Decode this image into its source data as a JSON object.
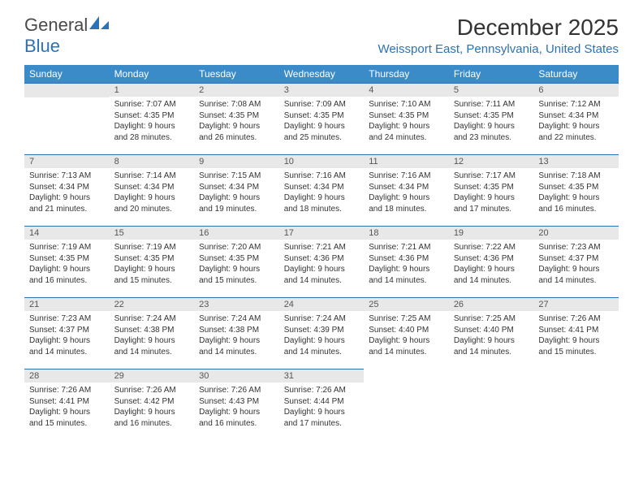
{
  "logo": {
    "text_general": "General",
    "text_blue": "Blue"
  },
  "header": {
    "month_title": "December 2025",
    "location": "Weissport East, Pennsylvania, United States"
  },
  "colors": {
    "header_bg": "#3b8bc9",
    "accent": "#2d72b5",
    "daynum_bg": "#e8e8e8",
    "text": "#333333",
    "page_bg": "#ffffff"
  },
  "weekdays": [
    "Sunday",
    "Monday",
    "Tuesday",
    "Wednesday",
    "Thursday",
    "Friday",
    "Saturday"
  ],
  "weeks": [
    [
      null,
      {
        "n": "1",
        "sr": "Sunrise: 7:07 AM",
        "ss": "Sunset: 4:35 PM",
        "d1": "Daylight: 9 hours",
        "d2": "and 28 minutes."
      },
      {
        "n": "2",
        "sr": "Sunrise: 7:08 AM",
        "ss": "Sunset: 4:35 PM",
        "d1": "Daylight: 9 hours",
        "d2": "and 26 minutes."
      },
      {
        "n": "3",
        "sr": "Sunrise: 7:09 AM",
        "ss": "Sunset: 4:35 PM",
        "d1": "Daylight: 9 hours",
        "d2": "and 25 minutes."
      },
      {
        "n": "4",
        "sr": "Sunrise: 7:10 AM",
        "ss": "Sunset: 4:35 PM",
        "d1": "Daylight: 9 hours",
        "d2": "and 24 minutes."
      },
      {
        "n": "5",
        "sr": "Sunrise: 7:11 AM",
        "ss": "Sunset: 4:35 PM",
        "d1": "Daylight: 9 hours",
        "d2": "and 23 minutes."
      },
      {
        "n": "6",
        "sr": "Sunrise: 7:12 AM",
        "ss": "Sunset: 4:34 PM",
        "d1": "Daylight: 9 hours",
        "d2": "and 22 minutes."
      }
    ],
    [
      {
        "n": "7",
        "sr": "Sunrise: 7:13 AM",
        "ss": "Sunset: 4:34 PM",
        "d1": "Daylight: 9 hours",
        "d2": "and 21 minutes."
      },
      {
        "n": "8",
        "sr": "Sunrise: 7:14 AM",
        "ss": "Sunset: 4:34 PM",
        "d1": "Daylight: 9 hours",
        "d2": "and 20 minutes."
      },
      {
        "n": "9",
        "sr": "Sunrise: 7:15 AM",
        "ss": "Sunset: 4:34 PM",
        "d1": "Daylight: 9 hours",
        "d2": "and 19 minutes."
      },
      {
        "n": "10",
        "sr": "Sunrise: 7:16 AM",
        "ss": "Sunset: 4:34 PM",
        "d1": "Daylight: 9 hours",
        "d2": "and 18 minutes."
      },
      {
        "n": "11",
        "sr": "Sunrise: 7:16 AM",
        "ss": "Sunset: 4:34 PM",
        "d1": "Daylight: 9 hours",
        "d2": "and 18 minutes."
      },
      {
        "n": "12",
        "sr": "Sunrise: 7:17 AM",
        "ss": "Sunset: 4:35 PM",
        "d1": "Daylight: 9 hours",
        "d2": "and 17 minutes."
      },
      {
        "n": "13",
        "sr": "Sunrise: 7:18 AM",
        "ss": "Sunset: 4:35 PM",
        "d1": "Daylight: 9 hours",
        "d2": "and 16 minutes."
      }
    ],
    [
      {
        "n": "14",
        "sr": "Sunrise: 7:19 AM",
        "ss": "Sunset: 4:35 PM",
        "d1": "Daylight: 9 hours",
        "d2": "and 16 minutes."
      },
      {
        "n": "15",
        "sr": "Sunrise: 7:19 AM",
        "ss": "Sunset: 4:35 PM",
        "d1": "Daylight: 9 hours",
        "d2": "and 15 minutes."
      },
      {
        "n": "16",
        "sr": "Sunrise: 7:20 AM",
        "ss": "Sunset: 4:35 PM",
        "d1": "Daylight: 9 hours",
        "d2": "and 15 minutes."
      },
      {
        "n": "17",
        "sr": "Sunrise: 7:21 AM",
        "ss": "Sunset: 4:36 PM",
        "d1": "Daylight: 9 hours",
        "d2": "and 14 minutes."
      },
      {
        "n": "18",
        "sr": "Sunrise: 7:21 AM",
        "ss": "Sunset: 4:36 PM",
        "d1": "Daylight: 9 hours",
        "d2": "and 14 minutes."
      },
      {
        "n": "19",
        "sr": "Sunrise: 7:22 AM",
        "ss": "Sunset: 4:36 PM",
        "d1": "Daylight: 9 hours",
        "d2": "and 14 minutes."
      },
      {
        "n": "20",
        "sr": "Sunrise: 7:23 AM",
        "ss": "Sunset: 4:37 PM",
        "d1": "Daylight: 9 hours",
        "d2": "and 14 minutes."
      }
    ],
    [
      {
        "n": "21",
        "sr": "Sunrise: 7:23 AM",
        "ss": "Sunset: 4:37 PM",
        "d1": "Daylight: 9 hours",
        "d2": "and 14 minutes."
      },
      {
        "n": "22",
        "sr": "Sunrise: 7:24 AM",
        "ss": "Sunset: 4:38 PM",
        "d1": "Daylight: 9 hours",
        "d2": "and 14 minutes."
      },
      {
        "n": "23",
        "sr": "Sunrise: 7:24 AM",
        "ss": "Sunset: 4:38 PM",
        "d1": "Daylight: 9 hours",
        "d2": "and 14 minutes."
      },
      {
        "n": "24",
        "sr": "Sunrise: 7:24 AM",
        "ss": "Sunset: 4:39 PM",
        "d1": "Daylight: 9 hours",
        "d2": "and 14 minutes."
      },
      {
        "n": "25",
        "sr": "Sunrise: 7:25 AM",
        "ss": "Sunset: 4:40 PM",
        "d1": "Daylight: 9 hours",
        "d2": "and 14 minutes."
      },
      {
        "n": "26",
        "sr": "Sunrise: 7:25 AM",
        "ss": "Sunset: 4:40 PM",
        "d1": "Daylight: 9 hours",
        "d2": "and 14 minutes."
      },
      {
        "n": "27",
        "sr": "Sunrise: 7:26 AM",
        "ss": "Sunset: 4:41 PM",
        "d1": "Daylight: 9 hours",
        "d2": "and 15 minutes."
      }
    ],
    [
      {
        "n": "28",
        "sr": "Sunrise: 7:26 AM",
        "ss": "Sunset: 4:41 PM",
        "d1": "Daylight: 9 hours",
        "d2": "and 15 minutes."
      },
      {
        "n": "29",
        "sr": "Sunrise: 7:26 AM",
        "ss": "Sunset: 4:42 PM",
        "d1": "Daylight: 9 hours",
        "d2": "and 16 minutes."
      },
      {
        "n": "30",
        "sr": "Sunrise: 7:26 AM",
        "ss": "Sunset: 4:43 PM",
        "d1": "Daylight: 9 hours",
        "d2": "and 16 minutes."
      },
      {
        "n": "31",
        "sr": "Sunrise: 7:26 AM",
        "ss": "Sunset: 4:44 PM",
        "d1": "Daylight: 9 hours",
        "d2": "and 17 minutes."
      },
      null,
      null,
      null
    ]
  ]
}
